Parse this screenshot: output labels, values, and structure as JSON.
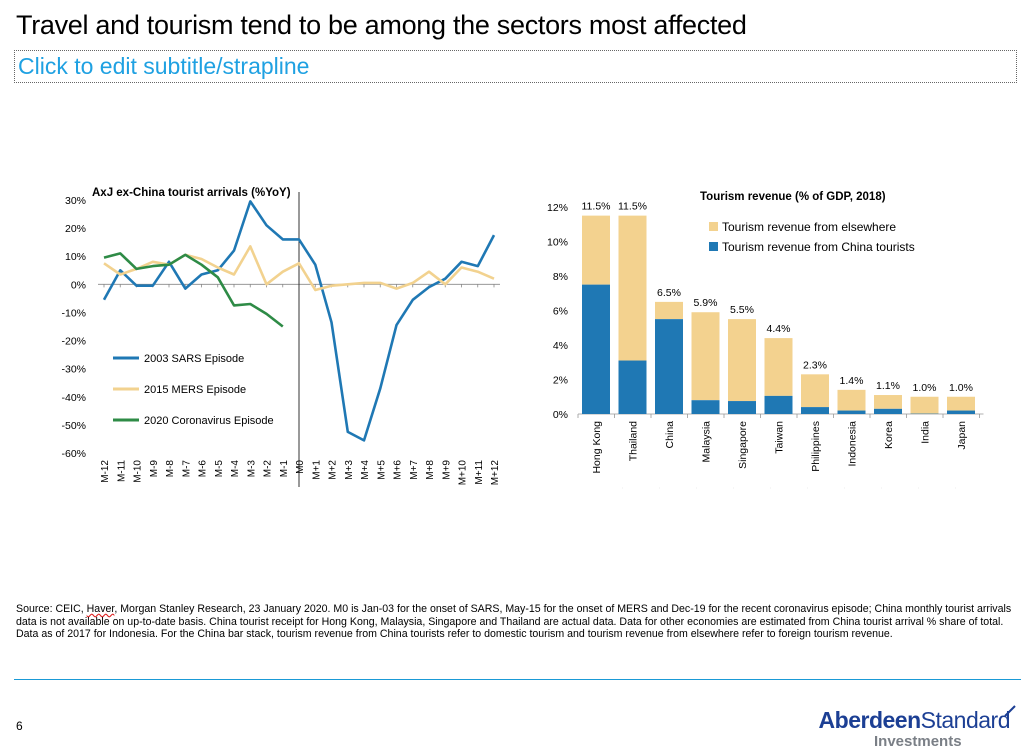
{
  "slide": {
    "title": "Travel and tourism tend to be among the sectors most affected",
    "subtitle": "Click to edit subtitle/strapline",
    "page_number": "6"
  },
  "source": {
    "pre": "Source: CEIC, ",
    "haver": "Haver",
    "post": ", Morgan Stanley Research, 23 January 2020. M0 is Jan-03 for the onset of SARS, May-15 for the onset of MERS and Dec-19 for the recent coronavirus episode; China monthly tourist arrivals data is not available on up-to-date basis. China tourist receipt for Hong Kong, Malaysia, Singapore and Thailand are actual data. Data for other economies are estimated from China tourist arrival % share of total. Data as of 2017 for Indonesia. For the China bar stack, tourism revenue from China tourists refer to domestic tourism and tourism revenue from elsewhere refer to foreign tourism revenue."
  },
  "logo": {
    "word1": "Aberdeen",
    "word2": "Standard",
    "word3": "Investments"
  },
  "colors": {
    "sars": "#1f78b4",
    "mers": "#f2d28f",
    "corona": "#2e8b46",
    "china_tourists": "#1f78b4",
    "elsewhere": "#f3d28f",
    "accent": "#1fa1e2"
  },
  "chart_data": [
    {
      "type": "line",
      "title": "AxJ ex-China tourist arrivals (%YoY)",
      "x": [
        "M-12",
        "M-11",
        "M-10",
        "M-9",
        "M-8",
        "M-7",
        "M-6",
        "M-5",
        "M-4",
        "M-3",
        "M-2",
        "M-1",
        "M0",
        "M+1",
        "M+2",
        "M+3",
        "M+4",
        "M+5",
        "M+6",
        "M+7",
        "M+8",
        "M+9",
        "M+10",
        "M+11",
        "M+12"
      ],
      "ylim": [
        -60,
        30
      ],
      "yticks": [
        30,
        20,
        10,
        0,
        -10,
        -20,
        -30,
        -40,
        -50,
        -60
      ],
      "ytick_labels": [
        "30%",
        "20%",
        "10%",
        "0%",
        "-10%",
        "-20%",
        "-30%",
        "-40%",
        "-50%",
        "-60%"
      ],
      "vertical_marker": "M0",
      "legend_position": "inside-lower-left",
      "series": [
        {
          "name": "2003 SARS Episode",
          "color_key": "sars",
          "values": [
            -5.5,
            5,
            -0.5,
            -0.5,
            8,
            -1.5,
            3.5,
            5,
            12,
            29.5,
            21,
            16,
            16,
            7,
            -13.5,
            -52.5,
            -55.5,
            -37,
            -14.5,
            -5.5,
            -1,
            2,
            8,
            6.5,
            17.5
          ]
        },
        {
          "name": "2015 MERS Episode",
          "color_key": "mers",
          "values": [
            7.5,
            3.5,
            5.5,
            8,
            7,
            10.5,
            9,
            6,
            3.5,
            13.5,
            0,
            4.5,
            7.5,
            -2,
            -0.5,
            0,
            0.5,
            0.5,
            -1.5,
            0.5,
            4.5,
            0,
            6,
            4.5,
            2
          ]
        },
        {
          "name": "2020 Coronavirus Episode",
          "color_key": "corona",
          "values": [
            9.5,
            11,
            5.5,
            6.5,
            7,
            10.5,
            7,
            2.5,
            -7.5,
            -7,
            -10.5,
            -15,
            null,
            null,
            null,
            null,
            null,
            null,
            null,
            null,
            null,
            null,
            null,
            null,
            null
          ]
        }
      ]
    },
    {
      "type": "bar",
      "stacked": true,
      "title": "Tourism revenue (% of GDP, 2018)",
      "categories": [
        "Hong Kong",
        "Thailand",
        "China",
        "Malaysia",
        "Singapore",
        "Taiwan",
        "Philippines",
        "Indonesia",
        "Korea",
        "India",
        "Japan"
      ],
      "ylim": [
        0,
        12
      ],
      "yticks": [
        0,
        2,
        4,
        6,
        8,
        10,
        12
      ],
      "ytick_labels": [
        "0%",
        "2%",
        "4%",
        "6%",
        "8%",
        "10%",
        "12%"
      ],
      "legend_position": "top-right",
      "series": [
        {
          "name": "Tourism revenue from China tourists",
          "color_key": "china_tourists",
          "values": [
            7.5,
            3.1,
            5.5,
            0.8,
            0.75,
            1.05,
            0.4,
            0.2,
            0.3,
            0.02,
            0.2
          ]
        },
        {
          "name": "Tourism revenue from elsewhere",
          "color_key": "elsewhere",
          "values": [
            4.0,
            8.4,
            1.0,
            5.1,
            4.75,
            3.35,
            1.9,
            1.2,
            0.8,
            0.98,
            0.8
          ]
        }
      ],
      "totals": [
        11.5,
        11.5,
        6.5,
        5.9,
        5.5,
        4.4,
        2.3,
        1.4,
        1.1,
        1.0,
        1.0
      ],
      "total_labels": [
        "11.5%",
        "11.5%",
        "6.5%",
        "5.9%",
        "5.5%",
        "4.4%",
        "2.3%",
        "1.4%",
        "1.1%",
        "1.0%",
        "1.0%"
      ]
    }
  ]
}
